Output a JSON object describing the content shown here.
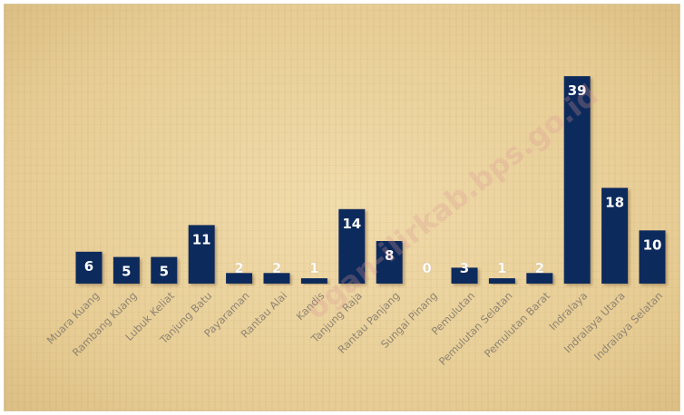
{
  "chart_data": {
    "type": "bar",
    "categories": [
      "Muara Kuang",
      "Rambang Kuang",
      "Lubuk Keliat",
      "Tanjung Batu",
      "Payaraman",
      "Rantau Alai",
      "Kandis",
      "Tanjung Raja",
      "Rantau Panjang",
      "Sungai Pinang",
      "Pemulutan",
      "Pemulutan Selatan",
      "Pemulutan Barat",
      "Indralaya",
      "Indralaya Utara",
      "Indralaya Selatan"
    ],
    "values": [
      6,
      5,
      5,
      11,
      2,
      2,
      1,
      14,
      8,
      0,
      3,
      1,
      2,
      39,
      18,
      10
    ],
    "ylim": [
      0,
      39
    ],
    "grid": false,
    "legend": "none",
    "bar_color": "#0d2a5c",
    "label_color_inside": "#ffffff",
    "label_color_outside": "#ffffff"
  },
  "watermark": "ogan-ilirkab.bps.go.id"
}
